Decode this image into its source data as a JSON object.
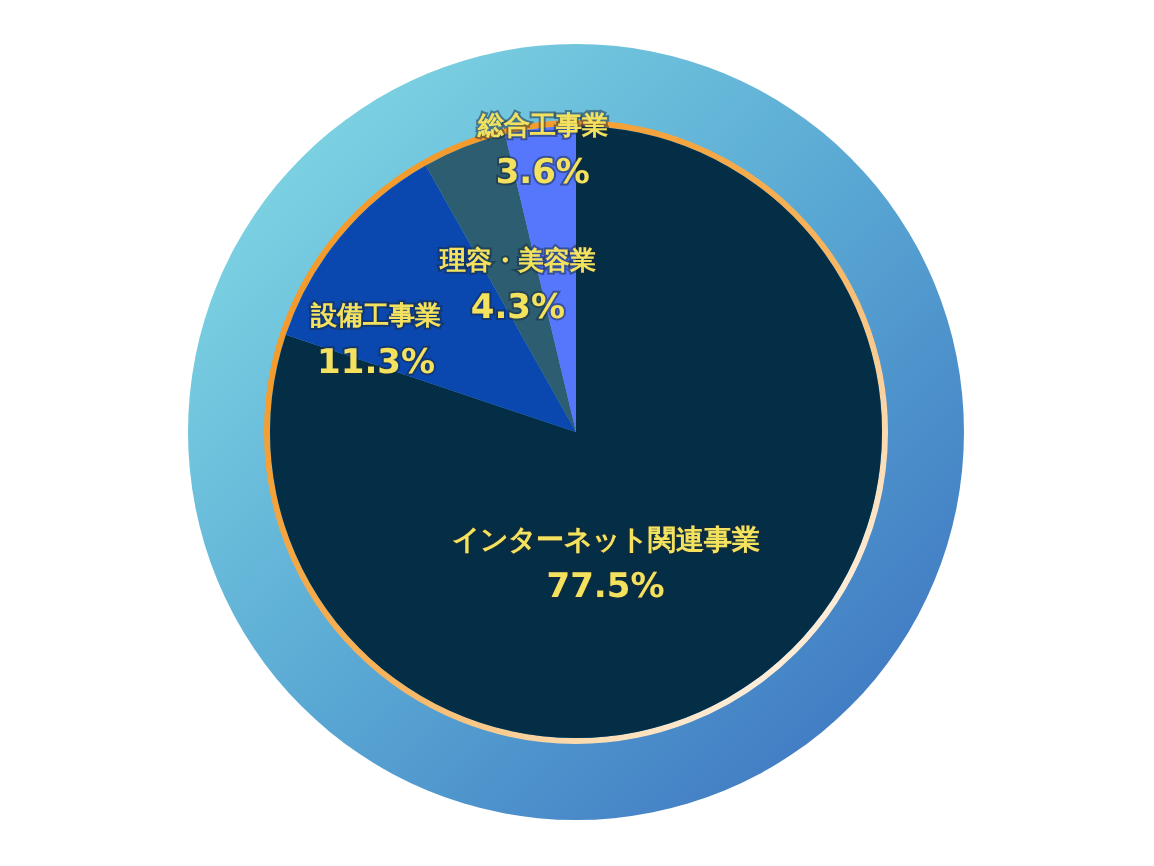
{
  "chart_data": {
    "type": "pie",
    "categories": [
      "インターネット関連事業",
      "設備工事業",
      "理容・美容業",
      "総合工事業"
    ],
    "values": [
      77.5,
      11.3,
      4.3,
      3.6
    ],
    "colors": [
      "#032e46",
      "#0a47ae",
      "#2c5d71",
      "#5676fb"
    ],
    "value_labels": [
      "77.5%",
      "11.3%",
      "4.3%",
      "3.6%"
    ]
  }
}
